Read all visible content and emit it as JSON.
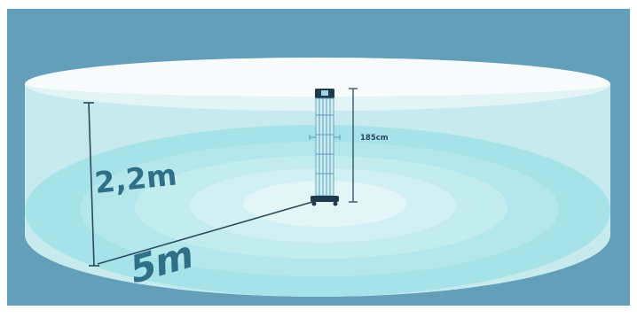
{
  "labels": {
    "room_height": "2,2m",
    "coverage_radius": "5m",
    "device_height": "185cm"
  },
  "colors": {
    "background": "#649fba",
    "cylinder_top": "#f7fbfc",
    "cylinder_wall": "#c9ecef",
    "floor_outer": "#8fdde3",
    "floor_ring_2": "#a6e4e9",
    "floor_ring_3": "#bdebee",
    "floor_ring_4": "#d2f2f4",
    "floor_center": "#eef9fa",
    "label_text": "#2f6f87",
    "measure_line": "#2b4b5c",
    "device_dark": "#1f3a4a",
    "device_tube": "#5e9cb6"
  }
}
